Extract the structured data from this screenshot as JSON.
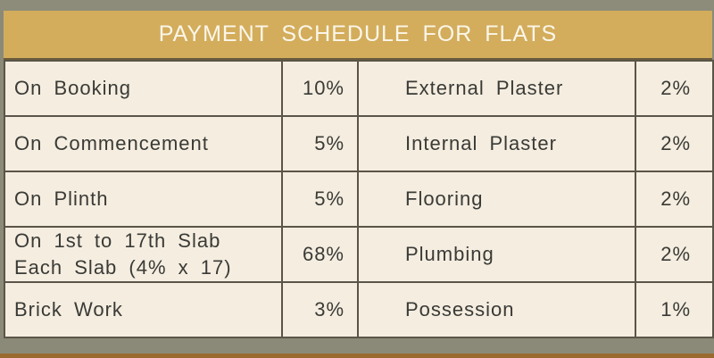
{
  "title": "PAYMENT SCHEDULE FOR FLATS",
  "rows": [
    {
      "stage": "On Booking",
      "percent": "10%",
      "stage2": "External Plaster",
      "percent2": "2%"
    },
    {
      "stage": "On Commencement",
      "percent": "5%",
      "stage2": "Internal Plaster",
      "percent2": "2%"
    },
    {
      "stage": "On Plinth",
      "percent": "5%",
      "stage2": "Flooring",
      "percent2": "2%"
    },
    {
      "stage": "On 1st to 17th Slab",
      "stage_line2": "Each Slab (4% x 17)",
      "percent": "68%",
      "stage2": "Plumbing",
      "percent2": "2%"
    },
    {
      "stage": "Brick Work",
      "percent": "3%",
      "stage2": "Possession",
      "percent2": "1%"
    }
  ],
  "colors": {
    "header": "#d3ad5c",
    "cell": "#f4ede0",
    "border": "#5a5548"
  }
}
